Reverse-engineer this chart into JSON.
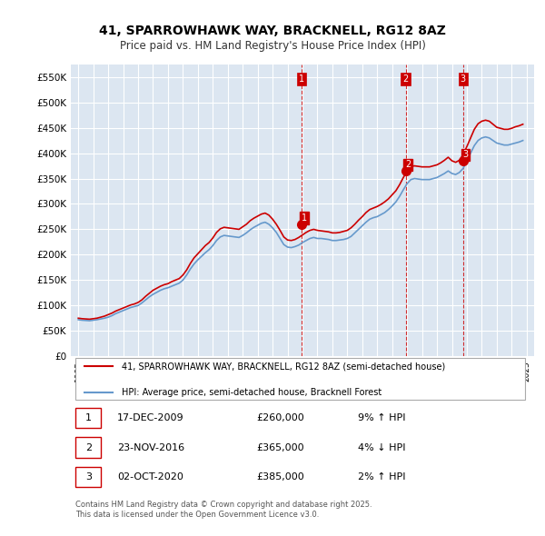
{
  "title": "41, SPARROWHAWK WAY, BRACKNELL, RG12 8AZ",
  "subtitle": "Price paid vs. HM Land Registry's House Price Index (HPI)",
  "background_color": "#ffffff",
  "plot_bg_color": "#dce6f1",
  "grid_color": "#ffffff",
  "ylabel_color": "#000000",
  "sale_color": "#cc0000",
  "hpi_color": "#6699cc",
  "vline_color": "#cc0000",
  "ylim": [
    0,
    575000
  ],
  "yticks": [
    0,
    50000,
    100000,
    150000,
    200000,
    250000,
    300000,
    350000,
    400000,
    450000,
    500000,
    550000
  ],
  "ytick_labels": [
    "£0",
    "£50K",
    "£100K",
    "£150K",
    "£200K",
    "£250K",
    "£300K",
    "£350K",
    "£400K",
    "£450K",
    "£500K",
    "£550K"
  ],
  "sale_dates": [
    2009.96,
    2016.9,
    2020.75
  ],
  "sale_prices": [
    260000,
    365000,
    385000
  ],
  "sale_labels": [
    "1",
    "2",
    "3"
  ],
  "vline_dates": [
    2009.96,
    2016.9,
    2020.75
  ],
  "legend_line1": "41, SPARROWHAWK WAY, BRACKNELL, RG12 8AZ (semi-detached house)",
  "legend_line2": "HPI: Average price, semi-detached house, Bracknell Forest",
  "table_entries": [
    {
      "label": "1",
      "date": "17-DEC-2009",
      "price": "£260,000",
      "change": "9% ↑ HPI"
    },
    {
      "label": "2",
      "date": "23-NOV-2016",
      "price": "£365,000",
      "change": "4% ↓ HPI"
    },
    {
      "label": "3",
      "date": "02-OCT-2020",
      "price": "£385,000",
      "change": "2% ↑ HPI"
    }
  ],
  "footer": "Contains HM Land Registry data © Crown copyright and database right 2025.\nThis data is licensed under the Open Government Licence v3.0.",
  "hpi_data": {
    "years": [
      1995.0,
      1995.25,
      1995.5,
      1995.75,
      1996.0,
      1996.25,
      1996.5,
      1996.75,
      1997.0,
      1997.25,
      1997.5,
      1997.75,
      1998.0,
      1998.25,
      1998.5,
      1998.75,
      1999.0,
      1999.25,
      1999.5,
      1999.75,
      2000.0,
      2000.25,
      2000.5,
      2000.75,
      2001.0,
      2001.25,
      2001.5,
      2001.75,
      2002.0,
      2002.25,
      2002.5,
      2002.75,
      2003.0,
      2003.25,
      2003.5,
      2003.75,
      2004.0,
      2004.25,
      2004.5,
      2004.75,
      2005.0,
      2005.25,
      2005.5,
      2005.75,
      2006.0,
      2006.25,
      2006.5,
      2006.75,
      2007.0,
      2007.25,
      2007.5,
      2007.75,
      2008.0,
      2008.25,
      2008.5,
      2008.75,
      2009.0,
      2009.25,
      2009.5,
      2009.75,
      2010.0,
      2010.25,
      2010.5,
      2010.75,
      2011.0,
      2011.25,
      2011.5,
      2011.75,
      2012.0,
      2012.25,
      2012.5,
      2012.75,
      2013.0,
      2013.25,
      2013.5,
      2013.75,
      2014.0,
      2014.25,
      2014.5,
      2014.75,
      2015.0,
      2015.25,
      2015.5,
      2015.75,
      2016.0,
      2016.25,
      2016.5,
      2016.75,
      2017.0,
      2017.25,
      2017.5,
      2017.75,
      2018.0,
      2018.25,
      2018.5,
      2018.75,
      2019.0,
      2019.25,
      2019.5,
      2019.75,
      2020.0,
      2020.25,
      2020.5,
      2020.75,
      2021.0,
      2021.25,
      2021.5,
      2021.75,
      2022.0,
      2022.25,
      2022.5,
      2022.75,
      2023.0,
      2023.25,
      2023.5,
      2023.75,
      2024.0,
      2024.25,
      2024.5,
      2024.75
    ],
    "hpi_values": [
      72000,
      71000,
      70500,
      70000,
      71000,
      72000,
      73500,
      75000,
      77000,
      80000,
      84000,
      87000,
      90000,
      93000,
      96000,
      98000,
      100000,
      105000,
      111000,
      117000,
      122000,
      126000,
      130000,
      133000,
      135000,
      138000,
      141000,
      144000,
      150000,
      160000,
      172000,
      182000,
      190000,
      197000,
      204000,
      210000,
      218000,
      228000,
      235000,
      238000,
      237000,
      236000,
      235000,
      234000,
      238000,
      243000,
      249000,
      254000,
      258000,
      262000,
      264000,
      260000,
      253000,
      244000,
      232000,
      220000,
      215000,
      214000,
      216000,
      219000,
      224000,
      228000,
      232000,
      234000,
      232000,
      232000,
      231000,
      230000,
      228000,
      228000,
      229000,
      230000,
      232000,
      236000,
      243000,
      250000,
      257000,
      264000,
      270000,
      273000,
      275000,
      279000,
      283000,
      289000,
      296000,
      304000,
      315000,
      328000,
      340000,
      348000,
      350000,
      349000,
      348000,
      348000,
      348000,
      350000,
      352000,
      356000,
      360000,
      365000,
      360000,
      358000,
      362000,
      370000,
      385000,
      400000,
      415000,
      425000,
      430000,
      432000,
      430000,
      425000,
      420000,
      418000,
      416000,
      416000,
      418000,
      420000,
      422000,
      425000
    ],
    "sale_line_values": [
      75000,
      74000,
      73500,
      73000,
      74000,
      75000,
      77000,
      79000,
      82000,
      85000,
      89000,
      92000,
      95000,
      98000,
      101000,
      103000,
      106000,
      111000,
      118000,
      124000,
      130000,
      134000,
      138000,
      141000,
      143000,
      147000,
      150000,
      153000,
      160000,
      170000,
      183000,
      194000,
      202000,
      210000,
      218000,
      224000,
      233000,
      244000,
      251000,
      254000,
      253000,
      252000,
      251000,
      250000,
      255000,
      260000,
      267000,
      272000,
      276000,
      280000,
      282000,
      278000,
      270000,
      260000,
      248000,
      235000,
      229000,
      228000,
      230000,
      234000,
      239000,
      244000,
      248000,
      250000,
      248000,
      247000,
      246000,
      245000,
      243000,
      243000,
      244000,
      246000,
      248000,
      253000,
      260000,
      268000,
      275000,
      283000,
      289000,
      292000,
      295000,
      299000,
      304000,
      310000,
      318000,
      326000,
      338000,
      352000,
      365000,
      374000,
      375000,
      374000,
      373000,
      373000,
      373000,
      375000,
      377000,
      381000,
      386000,
      392000,
      385000,
      382000,
      386000,
      397000,
      413000,
      430000,
      447000,
      458000,
      463000,
      465000,
      463000,
      457000,
      451000,
      449000,
      447000,
      447000,
      449000,
      452000,
      454000,
      457000
    ]
  }
}
